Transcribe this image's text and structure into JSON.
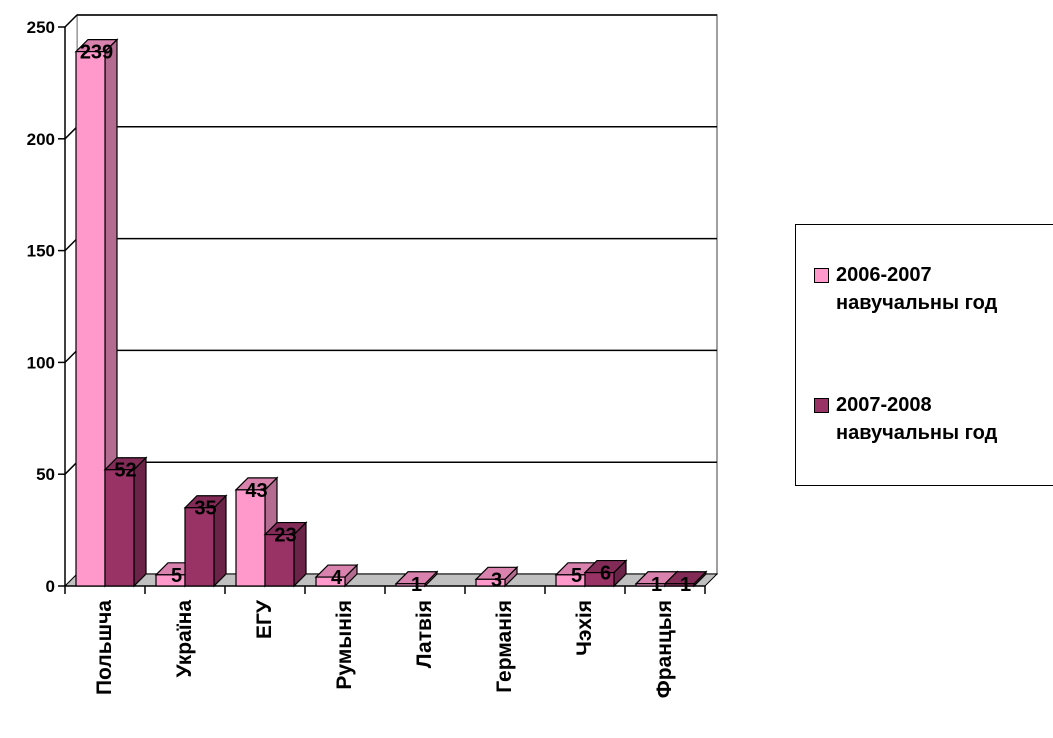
{
  "chart_data": {
    "type": "bar",
    "categories": [
      "Польшча",
      "Украïна",
      "ЕГУ",
      "Румынія",
      "Латвія",
      "Германія",
      "Чэхія",
      "Францыя"
    ],
    "series": [
      {
        "name": "2006-2007 навучальны год",
        "values": [
          239,
          5,
          43,
          4,
          1,
          3,
          5,
          1
        ],
        "color": "#ff99cc"
      },
      {
        "name": "2007-2008 навучальны год",
        "values": [
          52,
          35,
          23,
          0,
          0,
          0,
          6,
          1
        ],
        "color": "#993366"
      }
    ],
    "data_labels": [
      [
        "239",
        "5",
        "43",
        "4",
        "1",
        "3",
        "5",
        "1"
      ],
      [
        "52",
        "35",
        "23",
        "",
        "",
        "",
        "6",
        "1"
      ]
    ],
    "ylim": [
      0,
      250
    ],
    "yticks": [
      0,
      50,
      100,
      150,
      200,
      250
    ],
    "grid": true,
    "legend_position": "right",
    "title": "",
    "xlabel": "",
    "ylabel": ""
  },
  "legend": {
    "items": [
      {
        "line1": "2006-2007",
        "line2": "навучальны год"
      },
      {
        "line1": "2007-2008",
        "line2": "навучальны год"
      }
    ]
  }
}
